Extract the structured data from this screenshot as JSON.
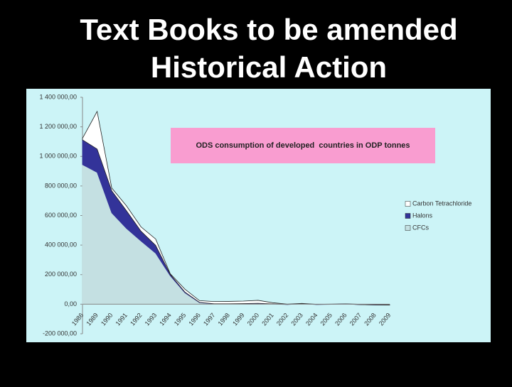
{
  "slide": {
    "title": [
      "Text Books to be amended",
      "Historical Action"
    ]
  },
  "chart_data": {
    "type": "stacked-area",
    "annotation": "ODS consumption of developed  countries in ODP tonnes",
    "categories": [
      "1986",
      "1989",
      "1990",
      "1991",
      "1992",
      "1993",
      "1994",
      "1995",
      "1996",
      "1997",
      "1998",
      "1999",
      "2000",
      "2001",
      "2002",
      "2003",
      "2004",
      "2005",
      "2006",
      "2007",
      "2008",
      "2009"
    ],
    "series": [
      {
        "name": "CFCs",
        "color": "#c4e0e2",
        "values": [
          944000,
          892000,
          618000,
          513000,
          427000,
          345000,
          192000,
          77000,
          10000,
          2000,
          2000,
          3000,
          5000,
          1000,
          -2000,
          2000,
          -2000,
          -1000,
          1000,
          -3000,
          -5000,
          -6000
        ]
      },
      {
        "name": "Halons",
        "color": "#333399",
        "values": [
          168000,
          158000,
          149000,
          120000,
          67000,
          53000,
          9000,
          5000,
          2000,
          1000,
          1000,
          1000,
          1000,
          1000,
          500,
          500,
          500,
          500,
          500,
          300,
          300,
          300
        ]
      },
      {
        "name": "Carbon Tetrachloride",
        "color": "#ffffff",
        "values": [
          10000,
          254000,
          19000,
          33000,
          29000,
          43000,
          5000,
          20000,
          12000,
          15000,
          16000,
          17000,
          20000,
          8000,
          2000,
          3000,
          1000,
          1000,
          1000,
          2000,
          2000,
          2000
        ]
      }
    ],
    "ylim": [
      -200000,
      1400000
    ],
    "yticks": [
      {
        "value": -200000,
        "label": "-200 000,00"
      },
      {
        "value": 0,
        "label": "0,00"
      },
      {
        "value": 200000,
        "label": "200 000,00"
      },
      {
        "value": 400000,
        "label": "400 000,00"
      },
      {
        "value": 600000,
        "label": "600 000,00"
      },
      {
        "value": 800000,
        "label": "800 000,00"
      },
      {
        "value": 1000000,
        "label": "1 000 000,00"
      },
      {
        "value": 1200000,
        "label": "1 200 000,00"
      },
      {
        "value": 1400000,
        "label": "1 400 000,00"
      }
    ],
    "legend": "right"
  }
}
